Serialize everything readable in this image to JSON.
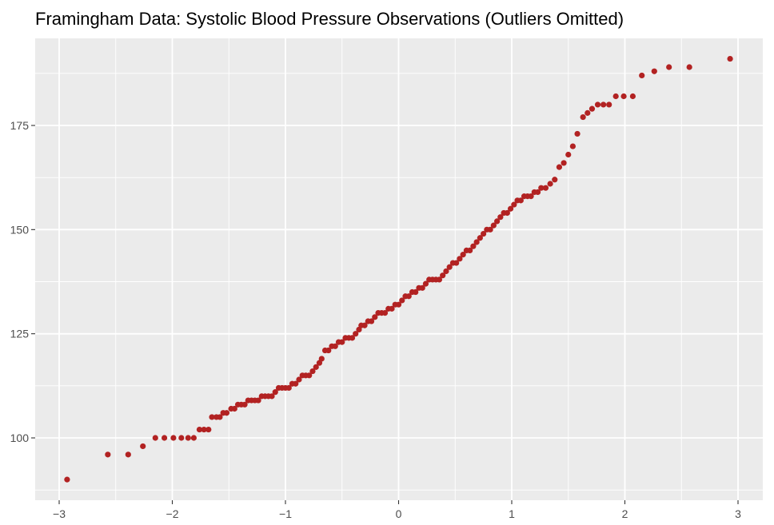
{
  "chart_data": {
    "type": "scatter",
    "title": "Framingham Data:  Systolic Blood Pressure Observations (Outliers Omitted)",
    "xlabel": "",
    "ylabel": "",
    "xlim": [
      -3.0,
      3.1
    ],
    "ylim": [
      86,
      195
    ],
    "x_ticks": [
      -3,
      -2,
      -1,
      0,
      1,
      2,
      3
    ],
    "x_tick_labels": [
      "−3",
      "−2",
      "−1",
      "0",
      "1",
      "2",
      "3"
    ],
    "y_ticks": [
      100,
      125,
      150,
      175
    ],
    "y_tick_labels": [
      "100",
      "125",
      "150",
      "175"
    ],
    "grid": true,
    "legend": "none",
    "point_color": "#B22222",
    "panel_color": "#EBEBEB",
    "grid_color": "#FFFFFF",
    "points": [
      [
        -2.93,
        90
      ],
      [
        -2.57,
        96
      ],
      [
        -2.39,
        96
      ],
      [
        -2.26,
        98
      ],
      [
        -2.15,
        100
      ],
      [
        -2.07,
        100
      ],
      [
        -1.99,
        100
      ],
      [
        -1.92,
        100
      ],
      [
        -1.86,
        100
      ],
      [
        -1.81,
        100
      ],
      [
        -1.76,
        102
      ],
      [
        -1.72,
        102
      ],
      [
        -1.68,
        102
      ],
      [
        -1.65,
        105
      ],
      [
        -1.61,
        105
      ],
      [
        -1.58,
        105
      ],
      [
        -1.55,
        106
      ],
      [
        -1.52,
        106
      ],
      [
        -1.48,
        107
      ],
      [
        -1.45,
        107
      ],
      [
        -1.42,
        108
      ],
      [
        -1.39,
        108
      ],
      [
        -1.36,
        108
      ],
      [
        -1.33,
        109
      ],
      [
        -1.3,
        109
      ],
      [
        -1.27,
        109
      ],
      [
        -1.24,
        109
      ],
      [
        -1.21,
        110
      ],
      [
        -1.18,
        110
      ],
      [
        -1.15,
        110
      ],
      [
        -1.12,
        110
      ],
      [
        -1.09,
        111
      ],
      [
        -1.06,
        112
      ],
      [
        -1.03,
        112
      ],
      [
        -1.0,
        112
      ],
      [
        -0.97,
        112
      ],
      [
        -0.94,
        113
      ],
      [
        -0.91,
        113
      ],
      [
        -0.88,
        114
      ],
      [
        -0.85,
        115
      ],
      [
        -0.82,
        115
      ],
      [
        -0.79,
        115
      ],
      [
        -0.76,
        116
      ],
      [
        -0.73,
        117
      ],
      [
        -0.7,
        118
      ],
      [
        -0.68,
        119
      ],
      [
        -0.65,
        121
      ],
      [
        -0.62,
        121
      ],
      [
        -0.59,
        122
      ],
      [
        -0.56,
        122
      ],
      [
        -0.53,
        123
      ],
      [
        -0.5,
        123
      ],
      [
        -0.47,
        124
      ],
      [
        -0.44,
        124
      ],
      [
        -0.41,
        124
      ],
      [
        -0.38,
        125
      ],
      [
        -0.35,
        126
      ],
      [
        -0.33,
        127
      ],
      [
        -0.3,
        127
      ],
      [
        -0.27,
        128
      ],
      [
        -0.24,
        128
      ],
      [
        -0.21,
        129
      ],
      [
        -0.18,
        130
      ],
      [
        -0.15,
        130
      ],
      [
        -0.12,
        130
      ],
      [
        -0.09,
        131
      ],
      [
        -0.06,
        131
      ],
      [
        -0.03,
        132
      ],
      [
        0.0,
        132
      ],
      [
        0.03,
        133
      ],
      [
        0.06,
        134
      ],
      [
        0.09,
        134
      ],
      [
        0.12,
        135
      ],
      [
        0.15,
        135
      ],
      [
        0.18,
        136
      ],
      [
        0.21,
        136
      ],
      [
        0.24,
        137
      ],
      [
        0.27,
        138
      ],
      [
        0.3,
        138
      ],
      [
        0.33,
        138
      ],
      [
        0.36,
        138
      ],
      [
        0.39,
        139
      ],
      [
        0.42,
        140
      ],
      [
        0.45,
        141
      ],
      [
        0.48,
        142
      ],
      [
        0.51,
        142
      ],
      [
        0.54,
        143
      ],
      [
        0.57,
        144
      ],
      [
        0.6,
        145
      ],
      [
        0.63,
        145
      ],
      [
        0.66,
        146
      ],
      [
        0.69,
        147
      ],
      [
        0.72,
        148
      ],
      [
        0.75,
        149
      ],
      [
        0.78,
        150
      ],
      [
        0.81,
        150
      ],
      [
        0.84,
        151
      ],
      [
        0.87,
        152
      ],
      [
        0.9,
        153
      ],
      [
        0.93,
        154
      ],
      [
        0.96,
        154
      ],
      [
        0.99,
        155
      ],
      [
        1.02,
        156
      ],
      [
        1.05,
        157
      ],
      [
        1.08,
        157
      ],
      [
        1.11,
        158
      ],
      [
        1.14,
        158
      ],
      [
        1.17,
        158
      ],
      [
        1.2,
        159
      ],
      [
        1.23,
        159
      ],
      [
        1.26,
        160
      ],
      [
        1.3,
        160
      ],
      [
        1.34,
        161
      ],
      [
        1.38,
        162
      ],
      [
        1.42,
        165
      ],
      [
        1.46,
        166
      ],
      [
        1.5,
        168
      ],
      [
        1.54,
        170
      ],
      [
        1.58,
        173
      ],
      [
        1.63,
        177
      ],
      [
        1.67,
        178
      ],
      [
        1.71,
        179
      ],
      [
        1.76,
        180
      ],
      [
        1.81,
        180
      ],
      [
        1.86,
        180
      ],
      [
        1.92,
        182
      ],
      [
        1.99,
        182
      ],
      [
        2.07,
        182
      ],
      [
        2.15,
        187
      ],
      [
        2.26,
        188
      ],
      [
        2.39,
        189
      ],
      [
        2.57,
        189
      ],
      [
        2.93,
        191
      ]
    ]
  }
}
